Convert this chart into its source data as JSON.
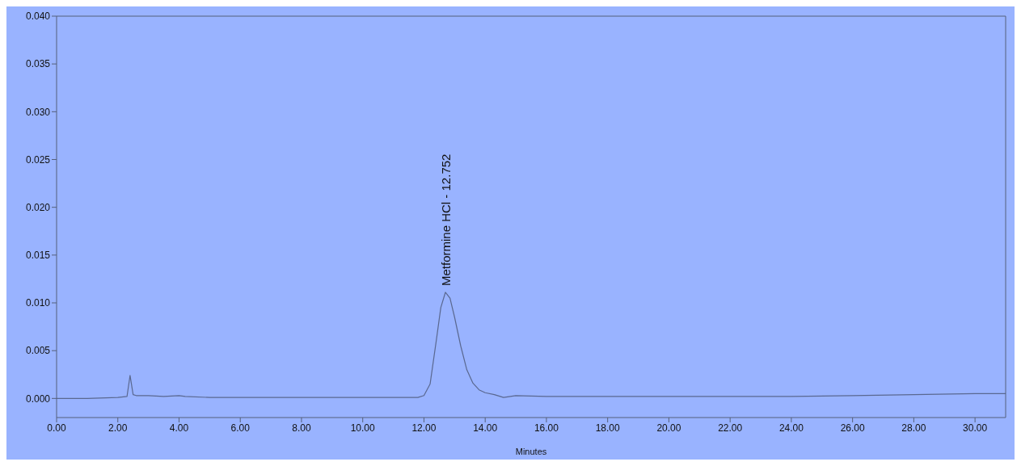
{
  "chart_data": {
    "type": "line",
    "xlabel": "Minutes",
    "x": [
      0,
      1,
      2,
      2.3,
      2.4,
      2.5,
      2.6,
      3,
      3.5,
      4,
      4.2,
      5,
      8,
      11,
      11.8,
      12.0,
      12.2,
      12.4,
      12.55,
      12.7,
      12.85,
      13.0,
      13.2,
      13.4,
      13.6,
      13.8,
      14.0,
      14.3,
      14.6,
      15,
      16,
      18,
      20,
      22,
      24,
      26,
      28,
      30,
      31
    ],
    "series": [
      {
        "color": "#5a6890",
        "values": [
          0,
          0,
          0.0001,
          0.0002,
          0.0024,
          0.0004,
          0.0003,
          0.0003,
          0.0002,
          0.0003,
          0.0002,
          0.0001,
          0.0001,
          0.0001,
          0.0001,
          0.0003,
          0.0015,
          0.006,
          0.0095,
          0.0111,
          0.0105,
          0.0085,
          0.0055,
          0.003,
          0.0016,
          0.0009,
          0.0006,
          0.0004,
          0.0001,
          0.0003,
          0.0002,
          0.0002,
          0.0002,
          0.0002,
          0.0002,
          0.0003,
          0.0004,
          0.0005,
          0.0005
        ]
      }
    ],
    "xlim": [
      0,
      31
    ],
    "xticks": [
      {
        "value": 0,
        "label": "0.00"
      },
      {
        "value": 2,
        "label": "2.00"
      },
      {
        "value": 4,
        "label": "4.00"
      },
      {
        "value": 6,
        "label": "6.00"
      },
      {
        "value": 8,
        "label": "8.00"
      },
      {
        "value": 10,
        "label": "10.00"
      },
      {
        "value": 12,
        "label": "12.00"
      },
      {
        "value": 14,
        "label": "14.00"
      },
      {
        "value": 16,
        "label": "16.00"
      },
      {
        "value": 18,
        "label": "18.00"
      },
      {
        "value": 20,
        "label": "20.00"
      },
      {
        "value": 22,
        "label": "22.00"
      },
      {
        "value": 24,
        "label": "24.00"
      },
      {
        "value": 26,
        "label": "26.00"
      },
      {
        "value": 28,
        "label": "28.00"
      },
      {
        "value": 30,
        "label": "30.00"
      }
    ],
    "ylim": [
      -0.002,
      0.04
    ],
    "yticks": [
      {
        "value": 0,
        "label": "0.000"
      },
      {
        "value": 0.005,
        "label": "0.005"
      },
      {
        "value": 0.01,
        "label": "0.010"
      },
      {
        "value": 0.015,
        "label": "0.015"
      },
      {
        "value": 0.02,
        "label": "0.020"
      },
      {
        "value": 0.025,
        "label": "0.025"
      },
      {
        "value": 0.03,
        "label": "0.030"
      },
      {
        "value": 0.035,
        "label": "0.035"
      },
      {
        "value": 0.04,
        "label": "0.040"
      }
    ],
    "annotations": [
      {
        "text": "Metformine HCl - 12.752",
        "x": 12.752,
        "y": 0.0111
      }
    ],
    "marker": "none",
    "line_style": "solid",
    "grid": false,
    "legend": false
  }
}
